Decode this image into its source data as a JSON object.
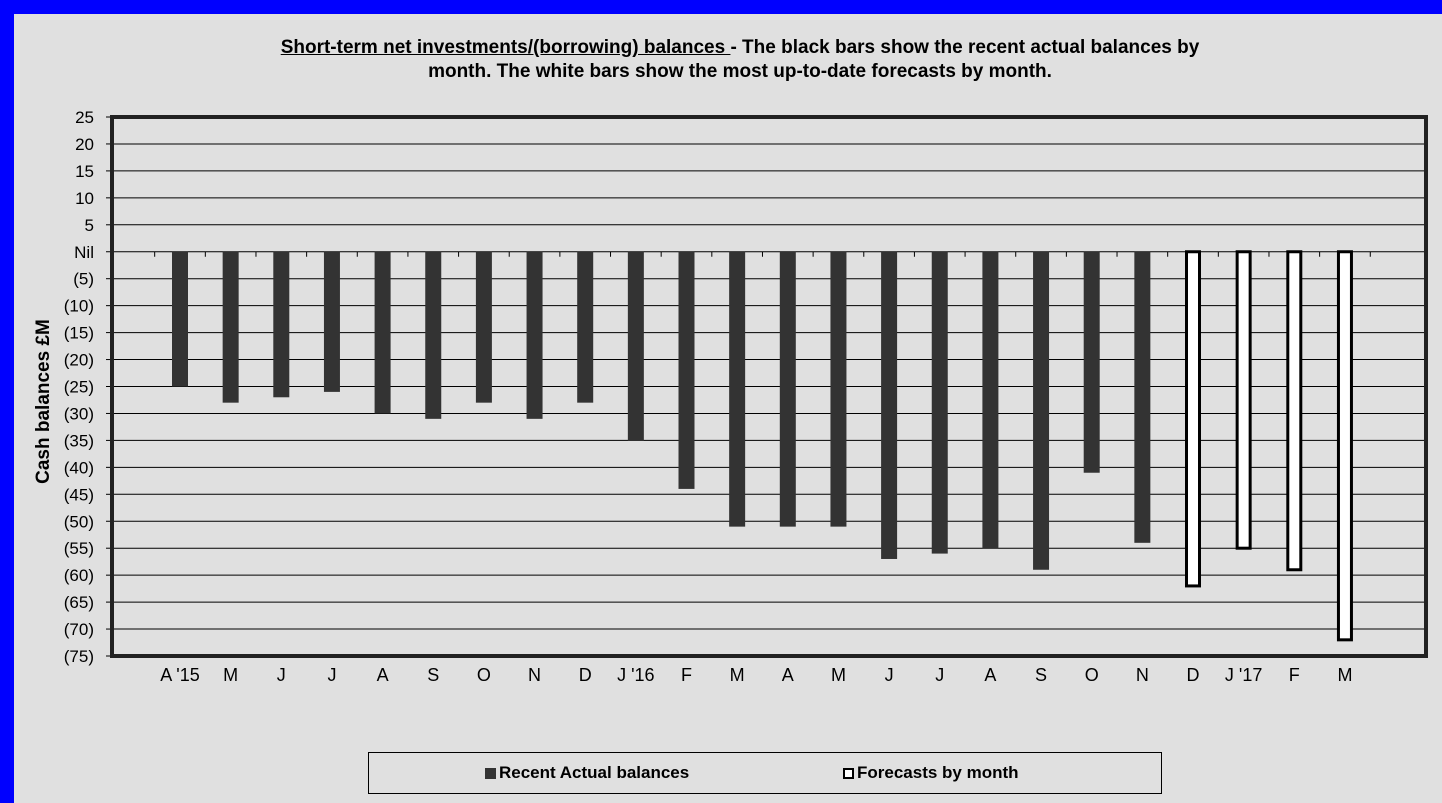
{
  "chart_data": {
    "type": "bar",
    "title_underlined": "Short-term net investments/(borrowing) balances ",
    "title_rest_line1": "- The black bars show the recent actual balances by",
    "title_line2": "month. The white bars show the most up-to-date forecasts by month.",
    "xlabel": "",
    "ylabel": "Cash balances £M",
    "ylim": [
      -75,
      25
    ],
    "ytick_values": [
      25,
      20,
      15,
      10,
      5,
      0,
      -5,
      -10,
      -15,
      -20,
      -25,
      -30,
      -35,
      -40,
      -45,
      -50,
      -55,
      -60,
      -65,
      -70,
      -75
    ],
    "ytick_labels": [
      "25",
      "20",
      "15",
      "10",
      "5",
      "Nil",
      "(5)",
      "(10)",
      "(15)",
      "(20)",
      "(25)",
      "(30)",
      "(35)",
      "(40)",
      "(45)",
      "(50)",
      "(55)",
      "(60)",
      "(65)",
      "(70)",
      "(75)"
    ],
    "grid": true,
    "legend_position": "bottom",
    "categories": [
      "A '15",
      "M",
      "J",
      "J",
      "A",
      "S",
      "O",
      "N",
      "D",
      "J '16",
      "F",
      "M",
      "A",
      "M",
      "J",
      "J",
      "A",
      "S",
      "O",
      "N",
      "D",
      "J '17",
      "F",
      "M"
    ],
    "series": [
      {
        "name": "Recent Actual balances",
        "color": "#333333",
        "values": [
          -25,
          -28,
          -27,
          -26,
          -30,
          -31,
          -28,
          -31,
          -28,
          -35,
          -44,
          -51,
          -51,
          -51,
          -57,
          -56,
          -55,
          -59,
          -41,
          -54,
          null,
          null,
          null,
          null
        ]
      },
      {
        "name": "Forecasts by month",
        "color": "#ffffff",
        "values": [
          null,
          null,
          null,
          null,
          null,
          null,
          null,
          null,
          null,
          null,
          null,
          null,
          null,
          null,
          null,
          null,
          null,
          null,
          null,
          null,
          -62,
          -55,
          -59,
          -72
        ]
      }
    ]
  }
}
